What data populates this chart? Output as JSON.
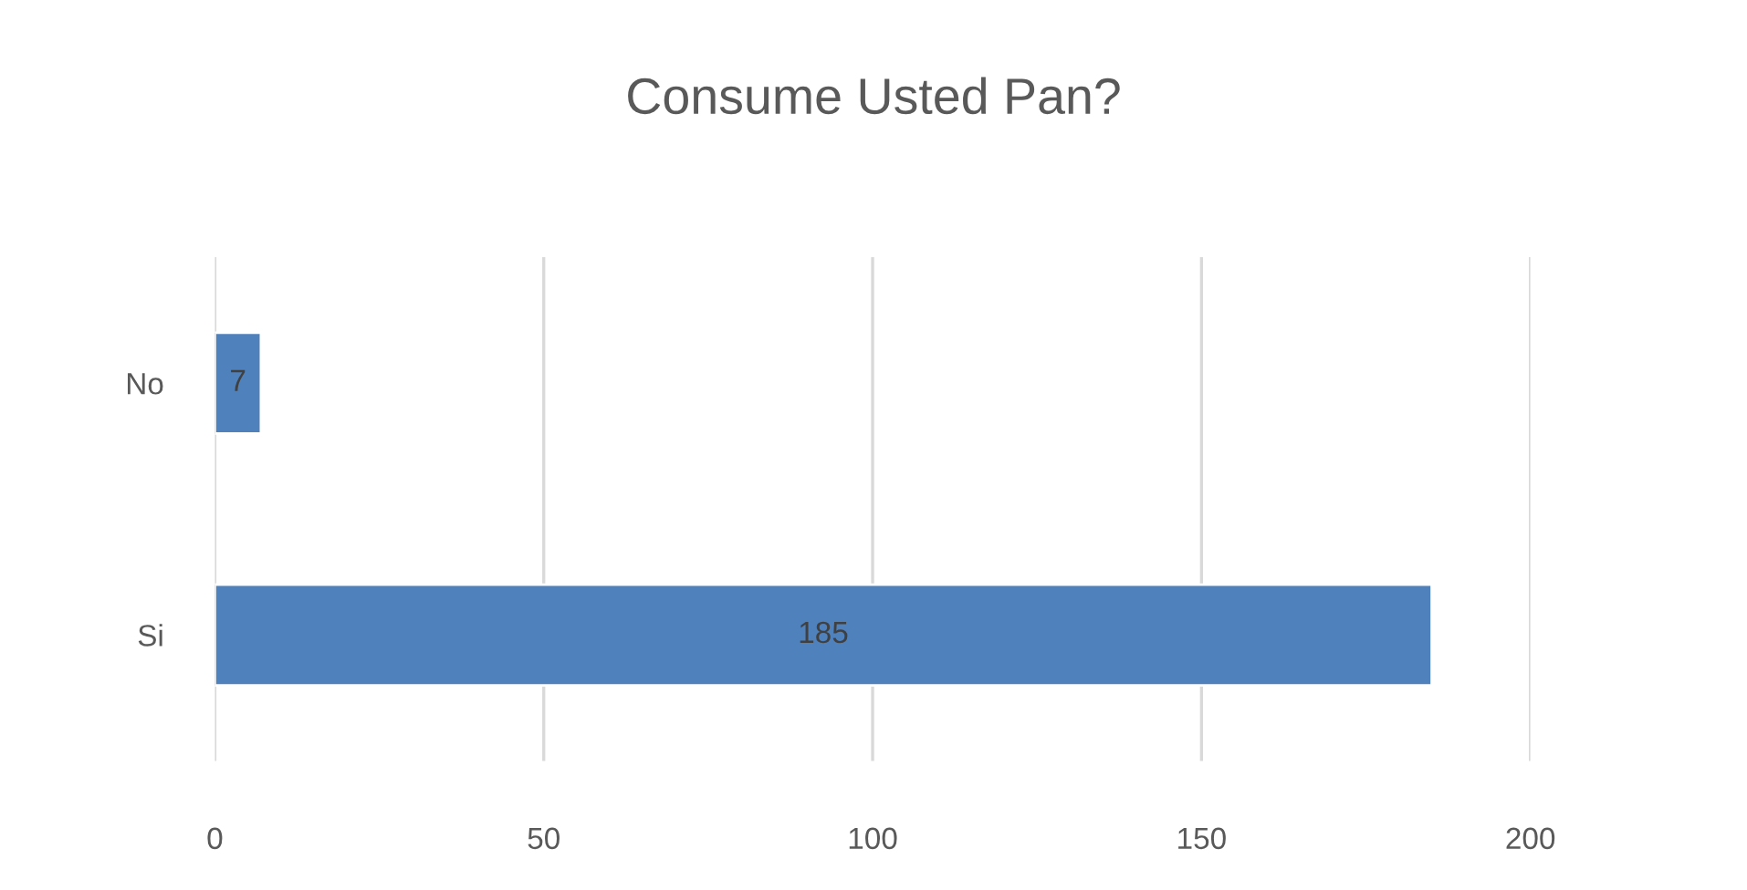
{
  "chart_data": {
    "type": "bar",
    "title": "Consume Usted Pan?",
    "orientation": "horizontal",
    "categories": [
      "No",
      "Si"
    ],
    "series": [
      {
        "color": "#4f81bd",
        "values": [
          7,
          185
        ]
      }
    ],
    "xlim": [
      0,
      200
    ],
    "xticks": [
      0,
      50,
      100,
      150,
      200
    ],
    "grid": "x",
    "data_labels": true
  }
}
